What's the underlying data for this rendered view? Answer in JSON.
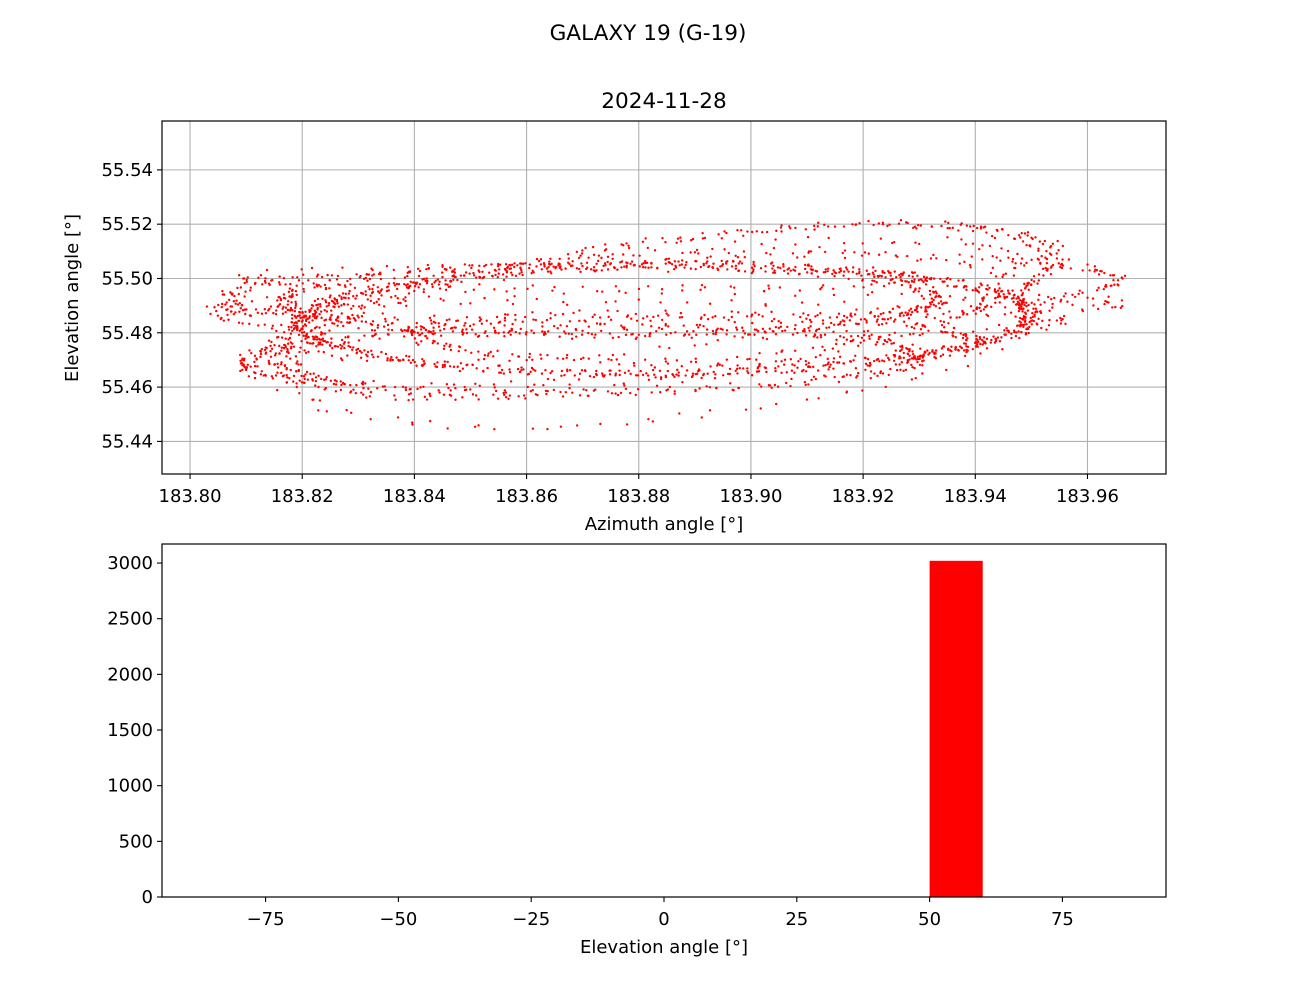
{
  "figure": {
    "suptitle": "GALAXY 19 (G-19)"
  },
  "chart_data": [
    {
      "type": "scatter",
      "title": "2024-11-28",
      "xlabel": "Azimuth angle [°]",
      "ylabel": "Elevation angle [°]",
      "xlim": [
        183.795,
        183.974
      ],
      "ylim": [
        55.428,
        55.558
      ],
      "grid": true,
      "color": "#ff0000",
      "x_ticks": [
        183.8,
        183.82,
        183.84,
        183.86,
        183.88,
        183.9,
        183.92,
        183.94,
        183.96
      ],
      "x_tick_labels": [
        "183.80",
        "183.82",
        "183.84",
        "183.86",
        "183.88",
        "183.90",
        "183.92",
        "183.94",
        "183.96"
      ],
      "y_ticks": [
        55.44,
        55.46,
        55.48,
        55.5,
        55.52,
        55.54
      ],
      "y_tick_labels": [
        "55.44",
        "55.46",
        "55.48",
        "55.50",
        "55.52",
        "55.54"
      ],
      "point_count": 3020,
      "trajectory_seed": 19,
      "loops": [
        {
          "cx": 183.885,
          "cy": 55.485,
          "rx": 0.065,
          "ry": 0.02,
          "tilt": 0.05,
          "weight": 6
        },
        {
          "cx": 183.875,
          "cy": 55.492,
          "rx": 0.058,
          "ry": 0.013,
          "tilt": 0.02,
          "weight": 3
        },
        {
          "cx": 183.89,
          "cy": 55.478,
          "rx": 0.05,
          "ry": 0.009,
          "tilt": -0.05,
          "weight": 2
        },
        {
          "cx": 183.886,
          "cy": 55.496,
          "rx": 0.079,
          "ry": 0.012,
          "tilt": 0.1,
          "weight": 2
        },
        {
          "cx": 183.87,
          "cy": 55.47,
          "rx": 0.06,
          "ry": 0.012,
          "tilt": 0.05,
          "weight": 3
        },
        {
          "cx": 183.885,
          "cy": 55.49,
          "rx": 0.08,
          "ry": 0.005,
          "tilt": 0.02,
          "weight": 1
        },
        {
          "cx": 183.88,
          "cy": 55.485,
          "rx": 0.075,
          "ry": 0.006,
          "tilt": -0.02,
          "weight": 1
        },
        {
          "cx": 183.87,
          "cy": 55.5,
          "rx": 0.06,
          "ry": 0.004,
          "tilt": 0.0,
          "weight": 1
        },
        {
          "cx": 183.885,
          "cy": 55.49,
          "rx": 0.07,
          "ry": 0.024,
          "tilt": 0.55,
          "weight": 2
        },
        {
          "cx": 183.885,
          "cy": 55.488,
          "rx": 0.067,
          "ry": 0.026,
          "tilt": 0.62,
          "weight": 2
        },
        {
          "cx": 183.882,
          "cy": 55.492,
          "rx": 0.066,
          "ry": 0.018,
          "tilt": 0.45,
          "weight": 1
        },
        {
          "cx": 183.884,
          "cy": 55.478,
          "rx": 0.068,
          "ry": 0.03,
          "tilt": 0.4,
          "weight": 1
        }
      ]
    },
    {
      "type": "bar",
      "subtype": "histogram",
      "xlabel": "Elevation angle [°]",
      "ylabel": "",
      "xlim": [
        -94.5,
        94.5
      ],
      "ylim": [
        0,
        3171
      ],
      "grid": false,
      "color": "#ff0000",
      "bins": [
        {
          "x0": 50,
          "x1": 60,
          "count": 3020
        }
      ],
      "x_ticks": [
        -75,
        -50,
        -25,
        0,
        25,
        50,
        75
      ],
      "x_tick_labels": [
        "−75",
        "−50",
        "−25",
        "0",
        "25",
        "50",
        "75"
      ],
      "y_ticks": [
        0,
        500,
        1000,
        1500,
        2000,
        2500,
        3000
      ],
      "y_tick_labels": [
        "0",
        "500",
        "1000",
        "1500",
        "2000",
        "2500",
        "3000"
      ]
    }
  ]
}
